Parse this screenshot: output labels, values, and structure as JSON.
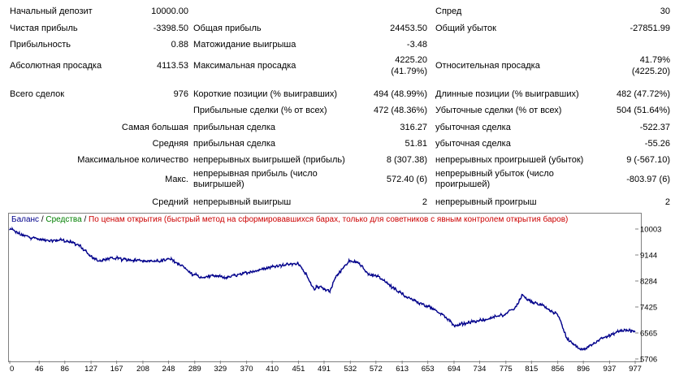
{
  "stats": {
    "initial_deposit_label": "Начальный депозит",
    "initial_deposit_value": "10000.00",
    "spread_label": "Спред",
    "spread_value": "30",
    "net_profit_label": "Чистая прибыль",
    "net_profit_value": "-3398.50",
    "gross_profit_label": "Общая прибыль",
    "gross_profit_value": "24453.50",
    "gross_loss_label": "Общий убыток",
    "gross_loss_value": "-27851.99",
    "profit_factor_label": "Прибыльность",
    "profit_factor_value": "0.88",
    "expected_payoff_label": "Матожидание выигрыша",
    "expected_payoff_value": "-3.48",
    "abs_drawdown_label": "Абсолютная просадка",
    "abs_drawdown_value": "4113.53",
    "max_drawdown_label": "Максимальная просадка",
    "max_drawdown_value_1": "4225.20",
    "max_drawdown_value_2": "(41.79%)",
    "rel_drawdown_label": "Относительная просадка",
    "rel_drawdown_value_1": "41.79%",
    "rel_drawdown_value_2": "(4225.20)",
    "total_trades_label": "Всего сделок",
    "total_trades_value": "976",
    "short_positions_label": "Короткие позиции (% выигравших)",
    "short_positions_value": "494 (48.99%)",
    "long_positions_label": "Длинные позиции (% выигравших)",
    "long_positions_value": "482 (47.72%)",
    "profit_trades_label": "Прибыльные сделки (% от всех)",
    "profit_trades_value": "472 (48.36%)",
    "loss_trades_label": "Убыточные сделки (% от всех)",
    "loss_trades_value": "504 (51.64%)",
    "largest_label": "Самая большая",
    "largest_profit_label": "прибыльная сделка",
    "largest_profit_value": "316.27",
    "largest_loss_label": "убыточная сделка",
    "largest_loss_value": "-522.37",
    "average_label": "Средняя",
    "average_profit_label": "прибыльная сделка",
    "average_profit_value": "51.81",
    "average_loss_label": "убыточная сделка",
    "average_loss_value": "-55.26",
    "max_count_label": "Максимальное количество",
    "max_consec_wins_label": "непрерывных выигрышей (прибыль)",
    "max_consec_wins_value": "8 (307.38)",
    "max_consec_losses_label": "непрерывных проигрышей (убыток)",
    "max_consec_losses_value": "9 (-567.10)",
    "max_label": "Макс.",
    "max_consec_profit_label": "непрерывная прибыль (число выигрышей)",
    "max_consec_profit_value": "572.40 (6)",
    "max_consec_loss_label": "непрерывный убыток (число проигрышей)",
    "max_consec_loss_value": "-803.97 (6)",
    "avg_label": "Средний",
    "avg_consec_wins_label": "непрерывный выигрыш",
    "avg_consec_wins_value": "2",
    "avg_consec_losses_label": "непрерывный проигрыш",
    "avg_consec_losses_value": "2"
  },
  "legend": {
    "balance": "Баланс",
    "sep1": " / ",
    "equity": "Средства",
    "sep2": " / ",
    "note": "По ценам открытия (быстрый метод на сформировавшихся барах, только для советников с явным контролем открытия баров)"
  },
  "colors": {
    "balance_line": "#00008b",
    "equity_label": "#008000",
    "note_label": "#cc0000"
  },
  "chart_data": {
    "type": "line",
    "series": [
      {
        "name": "Баланс"
      }
    ],
    "y_ticks": [
      10003,
      9144,
      8284,
      7425,
      6565,
      5706
    ],
    "x_ticks": [
      0,
      46,
      86,
      127,
      167,
      208,
      248,
      289,
      329,
      370,
      410,
      451,
      491,
      532,
      572,
      613,
      653,
      694,
      734,
      775,
      815,
      856,
      896,
      937,
      977
    ],
    "ylim": [
      5706,
      10003
    ],
    "xlim": [
      0,
      977
    ],
    "points": [
      [
        0,
        10003
      ],
      [
        20,
        9800
      ],
      [
        40,
        9700
      ],
      [
        60,
        9600
      ],
      [
        80,
        9650
      ],
      [
        100,
        9550
      ],
      [
        110,
        9450
      ],
      [
        125,
        9100
      ],
      [
        140,
        8950
      ],
      [
        160,
        9050
      ],
      [
        180,
        9000
      ],
      [
        200,
        8980
      ],
      [
        225,
        8930
      ],
      [
        250,
        9000
      ],
      [
        265,
        8850
      ],
      [
        285,
        8500
      ],
      [
        300,
        8400
      ],
      [
        320,
        8450
      ],
      [
        340,
        8400
      ],
      [
        360,
        8500
      ],
      [
        380,
        8600
      ],
      [
        400,
        8700
      ],
      [
        420,
        8800
      ],
      [
        440,
        8850
      ],
      [
        451,
        8850
      ],
      [
        465,
        8450
      ],
      [
        475,
        8000
      ],
      [
        485,
        8100
      ],
      [
        490,
        8000
      ],
      [
        500,
        7950
      ],
      [
        510,
        8450
      ],
      [
        530,
        8950
      ],
      [
        545,
        8900
      ],
      [
        560,
        8500
      ],
      [
        575,
        8450
      ],
      [
        590,
        8200
      ],
      [
        610,
        7900
      ],
      [
        625,
        7700
      ],
      [
        640,
        7550
      ],
      [
        660,
        7400
      ],
      [
        680,
        7100
      ],
      [
        695,
        6800
      ],
      [
        710,
        6900
      ],
      [
        730,
        6950
      ],
      [
        750,
        7050
      ],
      [
        770,
        7150
      ],
      [
        790,
        7400
      ],
      [
        800,
        7800
      ],
      [
        815,
        7600
      ],
      [
        830,
        7500
      ],
      [
        845,
        7300
      ],
      [
        856,
        7200
      ],
      [
        870,
        6400
      ],
      [
        885,
        6100
      ],
      [
        896,
        6000
      ],
      [
        910,
        6200
      ],
      [
        925,
        6400
      ],
      [
        940,
        6500
      ],
      [
        955,
        6650
      ],
      [
        965,
        6650
      ],
      [
        977,
        6600
      ]
    ]
  }
}
